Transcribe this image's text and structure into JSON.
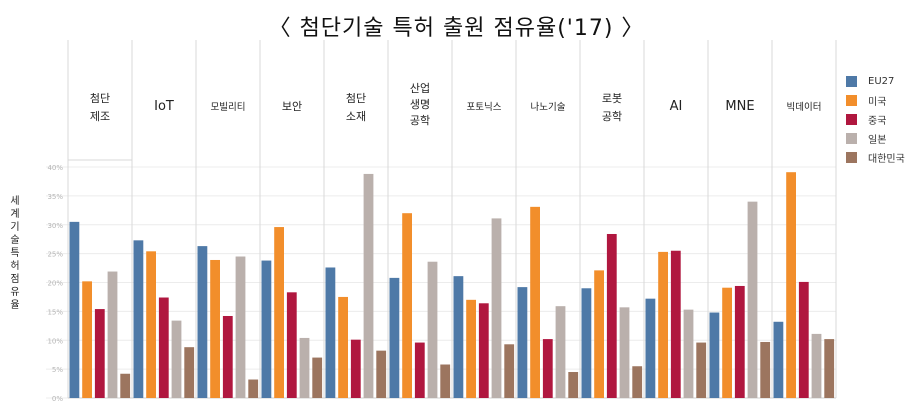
{
  "chart_data": {
    "type": "bar",
    "title": "〈 첨단기술 특허 출원 점유율('17) 〉",
    "ylabel": "세계 기술 특허 점유율",
    "ylim": [
      0,
      40
    ],
    "yticks": [
      "0%",
      "5%",
      "10%",
      "15%",
      "20%",
      "25%",
      "30%",
      "35%",
      "40%"
    ],
    "categories": [
      [
        "첨단",
        "제조"
      ],
      [
        "IoT"
      ],
      [
        "모빌리티"
      ],
      [
        "보안"
      ],
      [
        "첨단",
        "소재"
      ],
      [
        "산업",
        "생명",
        "공학"
      ],
      [
        "포토닉스"
      ],
      [
        "나노기술"
      ],
      [
        "로봇",
        "공학"
      ],
      [
        "AI"
      ],
      [
        "MNE"
      ],
      [
        "빅데이터"
      ]
    ],
    "series": [
      {
        "name": "EU27",
        "color": "#4e79a7",
        "values": [
          30.5,
          27.3,
          26.3,
          23.8,
          22.6,
          20.8,
          21.1,
          19.2,
          19.0,
          17.2,
          14.8,
          13.2
        ]
      },
      {
        "name": "미국",
        "color": "#f28e2b",
        "values": [
          20.2,
          25.4,
          23.9,
          29.6,
          17.5,
          32.0,
          17.0,
          33.1,
          22.1,
          25.3,
          19.1,
          39.1
        ]
      },
      {
        "name": "중국",
        "color": "#b0173f",
        "values": [
          15.4,
          17.4,
          14.2,
          18.3,
          10.1,
          9.6,
          16.4,
          10.2,
          28.4,
          25.5,
          19.4,
          20.1
        ]
      },
      {
        "name": "일본",
        "color": "#bab0ac",
        "values": [
          21.9,
          13.4,
          24.5,
          10.4,
          38.8,
          23.6,
          31.1,
          15.9,
          15.7,
          15.3,
          34.0,
          11.1
        ]
      },
      {
        "name": "대한민국",
        "color": "#9c755f",
        "values": [
          4.2,
          8.8,
          3.2,
          7.0,
          8.2,
          5.8,
          9.3,
          4.5,
          5.5,
          9.6,
          9.7,
          10.2
        ]
      }
    ]
  }
}
